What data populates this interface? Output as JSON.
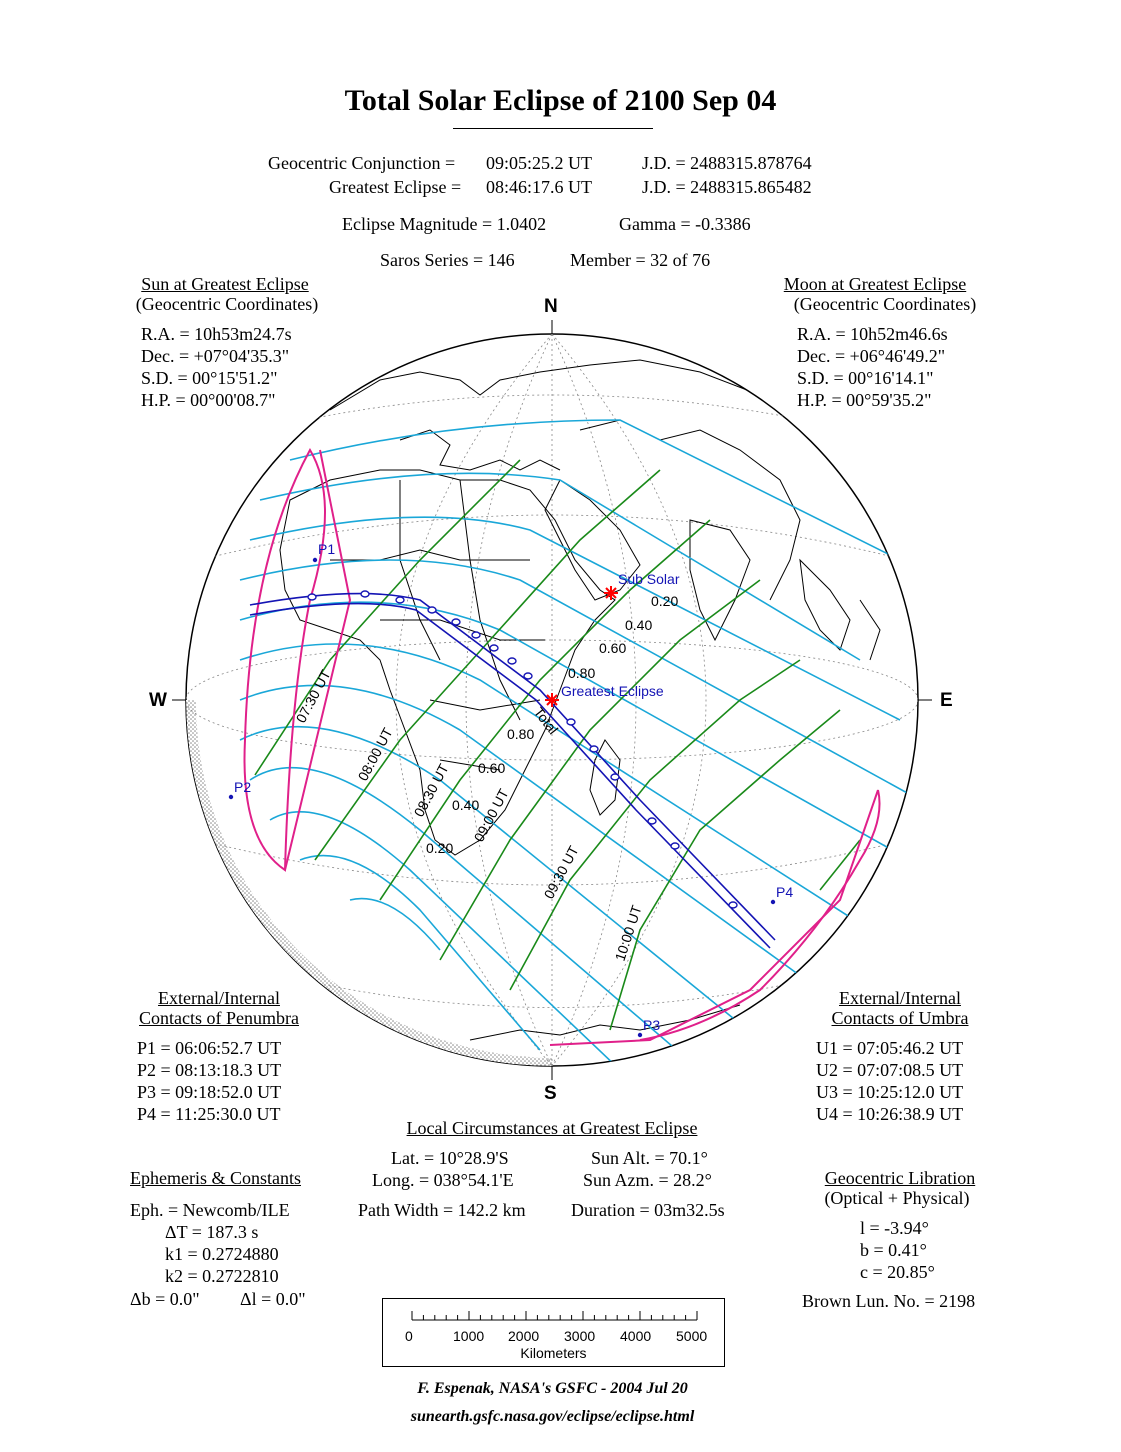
{
  "title": "Total Solar Eclipse of  2100 Sep 04",
  "header": {
    "conjunction_label": "Geocentric Conjunction =",
    "conjunction_time": "09:05:25.2 UT",
    "conjunction_jd": "J.D. =  2488315.878764",
    "greatest_label": "Greatest Eclipse =",
    "greatest_time": "08:46:17.6 UT",
    "greatest_jd": "J.D. =  2488315.865482",
    "magnitude": "Eclipse Magnitude =  1.0402",
    "gamma": "Gamma = -0.3386",
    "saros": "Saros Series = 146",
    "member": "Member = 32 of 76"
  },
  "sun": {
    "heading": "Sun at Greatest Eclipse",
    "subheading": "(Geocentric Coordinates)",
    "ra": "R.A. = 10h53m24.7s",
    "dec": "Dec. = +07°04'35.3\"",
    "sd": "S.D. =  00°15'51.2\"",
    "hp": "H.P. =  00°00'08.7\""
  },
  "moon": {
    "heading": "Moon at Greatest Eclipse",
    "subheading": "(Geocentric Coordinates)",
    "ra": "R.A. = 10h52m46.6s",
    "dec": "Dec. = +06°46'49.2\"",
    "sd": "S.D. =  00°16'14.1\"",
    "hp": "H.P. =  00°59'35.2\""
  },
  "compass": {
    "n": "N",
    "s": "S",
    "w": "W",
    "e": "E"
  },
  "map": {
    "sub_solar": "Sub Solar",
    "greatest": "Greatest Eclipse",
    "total": "Total",
    "p1": "P1",
    "p2": "P2",
    "p3": "P3",
    "p4": "P4",
    "mag_east": [
      "0.20",
      "0.40",
      "0.60",
      "0.80"
    ],
    "mag_west": [
      "0.80",
      "0.60",
      "0.40",
      "0.20"
    ],
    "time_labels": [
      "07:30 UT",
      "08:00 UT",
      "08:30 UT",
      "09:00 UT",
      "09:30 UT",
      "10:00 UT"
    ],
    "colors": {
      "magnitude": "#1aa7d8",
      "time": "#1a8a1a",
      "limits": "#e0208a",
      "path": "#1414b4",
      "marker": "#ff0000"
    }
  },
  "penumbra": {
    "heading1": "External/Internal",
    "heading2": "Contacts of Penumbra",
    "p1": "P1 = 06:06:52.7 UT",
    "p2": "P2 = 08:13:18.3 UT",
    "p3": "P3 = 09:18:52.0 UT",
    "p4": "P4 = 11:25:30.0 UT"
  },
  "umbra": {
    "heading1": "External/Internal",
    "heading2": "Contacts of Umbra",
    "u1": "U1 = 07:05:46.2 UT",
    "u2": "U2 = 07:07:08.5 UT",
    "u3": "U3 = 10:25:12.0 UT",
    "u4": "U4 = 10:26:38.9 UT"
  },
  "local": {
    "heading": "Local Circumstances at Greatest Eclipse",
    "lat": "Lat. =  10°28.9'S",
    "long": "Long. = 038°54.1'E",
    "sun_alt": "Sun Alt. =   70.1°",
    "sun_azm": "Sun Azm. =  28.2°",
    "path_width": "Path Width = 142.2 km",
    "duration": "Duration =  03m32.5s"
  },
  "ephemeris": {
    "heading": "Ephemeris & Constants",
    "eph": "Eph. = Newcomb/ILE",
    "dt": "ΔT =    187.3 s",
    "k1": "k1 = 0.2724880",
    "k2": "k2 = 0.2722810",
    "db": "Δb =   0.0\"",
    "dl": "Δl =   0.0\""
  },
  "libration": {
    "heading": "Geocentric Libration",
    "subheading": "(Optical + Physical)",
    "l": "l =   -3.94°",
    "b": "b =   0.41°",
    "c": "c =  20.85°",
    "brown": "Brown Lun. No. = 2198"
  },
  "scale": {
    "ticks": [
      "0",
      "1000",
      "2000",
      "3000",
      "4000",
      "5000"
    ],
    "unit": "Kilometers"
  },
  "footer": {
    "credit": "F. Espenak, NASA's GSFC -  2004 Jul 20",
    "url": "sunearth.gsfc.nasa.gov/eclipse/eclipse.html"
  }
}
